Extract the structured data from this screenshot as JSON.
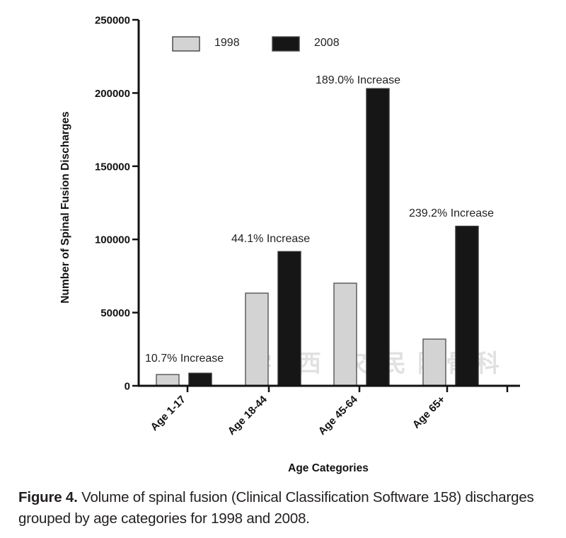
{
  "chart_data": {
    "type": "bar",
    "title": "",
    "xlabel": "Age  Categories",
    "ylabel": "Number of Spinal  Fusion Discharges",
    "ylim": [
      0,
      250000
    ],
    "yticks": [
      0,
      50000,
      100000,
      150000,
      200000,
      250000
    ],
    "ytick_labels": [
      "0",
      "50000",
      "100000",
      "150000",
      "200000",
      "250000"
    ],
    "categories": [
      "Age 1-17",
      "Age 18-44",
      "Age 45-64",
      "Age 65+"
    ],
    "series": [
      {
        "name": "1998",
        "color": "#d3d3d3",
        "values": [
          7700,
          63300,
          70100,
          31900
        ]
      },
      {
        "name": "2008",
        "color": "#161616",
        "values": [
          8600,
          91700,
          203000,
          109000
        ]
      }
    ],
    "annotations": [
      {
        "category": "Age 1-17",
        "text": "10.7%  Increase"
      },
      {
        "category": "Age 18-44",
        "text": "44.1%  Increase"
      },
      {
        "category": "Age 45-64",
        "text": "189.0%  Increase"
      },
      {
        "category": "Age 65+",
        "text": "239.2%  Increase"
      }
    ],
    "legend": {
      "placement": "top",
      "entries": [
        "1998",
        "2008"
      ]
    },
    "grid": false
  },
  "watermark": [
    "学",
    "西",
    "农",
    "民",
    "附",
    "骨",
    "科"
  ],
  "caption": {
    "label": "Figure 4.",
    "text": " Volume of spinal fusion (Clinical Classification Software 158) discharges grouped by age categories for 1998 and 2008."
  }
}
